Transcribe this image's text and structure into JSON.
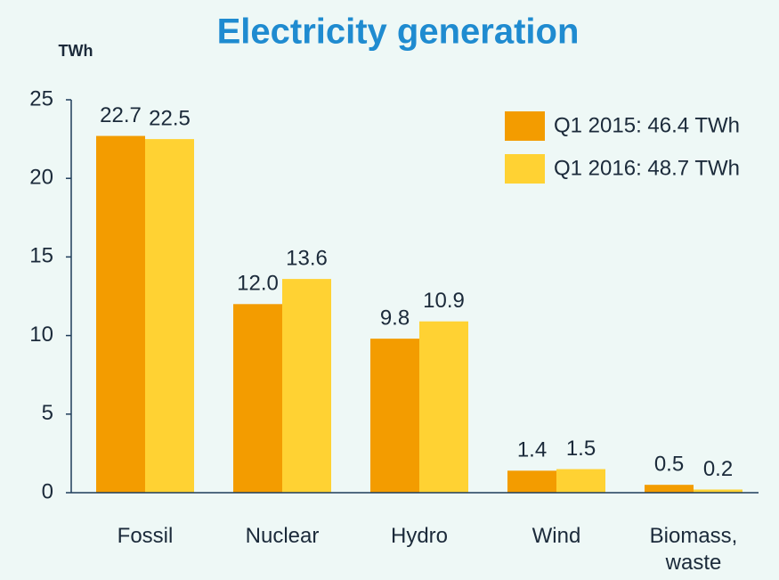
{
  "chart_data": {
    "type": "bar",
    "title": "Electricity generation",
    "ylabel": "TWh",
    "categories": [
      "Fossil",
      "Nuclear",
      "Hydro",
      "Wind",
      "Biomass,\nwaste"
    ],
    "series": [
      {
        "name": "Q1 2015: 46.4 TWh",
        "color": "#f39c00",
        "values": [
          22.7,
          12.0,
          9.8,
          1.4,
          0.5
        ],
        "value_labels": [
          "22.7",
          "12.0",
          "9.8",
          "1.4",
          "0.5"
        ]
      },
      {
        "name": "Q1 2016: 48.7 TWh",
        "color": "#ffd233",
        "values": [
          22.5,
          13.6,
          10.9,
          1.5,
          0.2
        ],
        "value_labels": [
          "22.5",
          "13.6",
          "10.9",
          "1.5",
          "0.2"
        ]
      }
    ],
    "ylim": [
      0,
      25
    ],
    "yticks": [
      0,
      5,
      10,
      15,
      20,
      25
    ],
    "legend": "upper right"
  }
}
